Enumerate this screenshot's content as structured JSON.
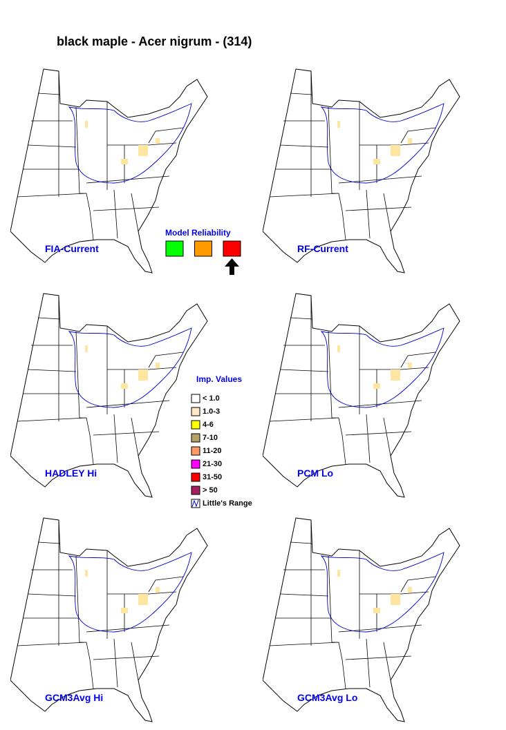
{
  "title": "black maple - Acer nigrum - (314)",
  "maps": [
    {
      "label": "FIA-Current"
    },
    {
      "label": "RF-Current"
    },
    {
      "label": "HADLEY Hi"
    },
    {
      "label": "PCM Lo"
    },
    {
      "label": "GCM3Avg Hi"
    },
    {
      "label": "GCM3Avg Lo"
    }
  ],
  "reliability": {
    "title": "Model Reliability",
    "colors": [
      "#00ff00",
      "#ff9900",
      "#ff0000"
    ],
    "selected": 2
  },
  "legend": {
    "title": "Imp. Values",
    "items": [
      {
        "label": "< 1.0",
        "color": "#ffffff"
      },
      {
        "label": "1.0-3",
        "color": "#ffe6c4"
      },
      {
        "label": "4-6",
        "color": "#ffff00"
      },
      {
        "label": "7-10",
        "color": "#b4a268"
      },
      {
        "label": "11-20",
        "color": "#ff9966"
      },
      {
        "label": "21-30",
        "color": "#ff00ff"
      },
      {
        "label": "31-50",
        "color": "#ff0000"
      },
      {
        "label": "> 50",
        "color": "#a3205f"
      }
    ],
    "range_label": "Little's Range"
  }
}
